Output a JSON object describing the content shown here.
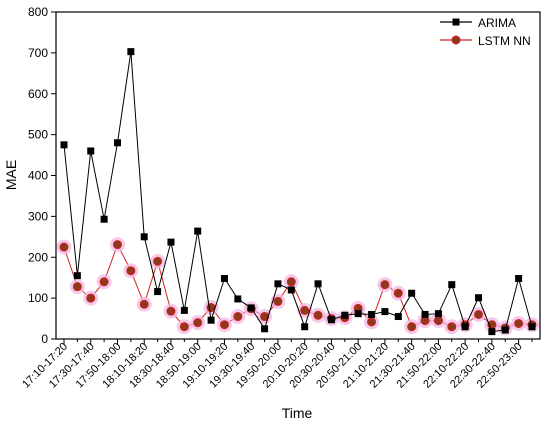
{
  "chart_data": {
    "type": "line",
    "title": "",
    "xlabel": "Time",
    "ylabel": "MAE",
    "ylim": [
      0,
      800
    ],
    "yticks": [
      0,
      100,
      200,
      300,
      400,
      500,
      600,
      700,
      800
    ],
    "grid": false,
    "legend_position": "top-right",
    "x": [
      "17:10",
      "17:20",
      "17:30",
      "17:40",
      "17:50",
      "18:00",
      "18:10",
      "18:20",
      "18:30",
      "18:40",
      "18:50",
      "19:00",
      "19:10",
      "19:20",
      "19:30",
      "19:40",
      "19:50",
      "20:00",
      "20:10",
      "20:20",
      "20:30",
      "20:40",
      "20:50",
      "21:00",
      "21:10",
      "21:20",
      "21:30",
      "21:40",
      "21:50",
      "22:00",
      "22:10",
      "22:20",
      "22:30",
      "22:40",
      "22:50",
      "23:00"
    ],
    "tick_labels": [
      "17:10-17:20",
      "17:30-17:40",
      "17:50-18:00",
      "18:10-18:20",
      "18:30-18:40",
      "18:50-19:00",
      "19:10-19:20",
      "19:30-19:40",
      "19:50-20:00",
      "20:10-20:20",
      "20:30-20:40",
      "20:50-21:00",
      "21:10-21:20",
      "21:30-21:40",
      "21:50-22:00",
      "22:10-22:20",
      "22:30-22:40",
      "22:50-23:00"
    ],
    "series": [
      {
        "name": "ARIMA",
        "color": "#000000",
        "marker": "square",
        "values": [
          475,
          155,
          460,
          293,
          480,
          703,
          250,
          116,
          237,
          70,
          264,
          46,
          148,
          98,
          76,
          25,
          135,
          120,
          30,
          135,
          47,
          58,
          62,
          60,
          67,
          55,
          112,
          60,
          62,
          133,
          30,
          101,
          18,
          22,
          148,
          30
        ]
      },
      {
        "name": "LSTM NN",
        "color": "#d42020",
        "marker": "circle",
        "values": [
          225,
          128,
          100,
          140,
          231,
          167,
          85,
          190,
          68,
          30,
          40,
          77,
          35,
          55,
          74,
          55,
          92,
          140,
          70,
          58,
          50,
          52,
          75,
          42,
          133,
          112,
          30,
          45,
          45,
          30,
          35,
          60,
          35,
          27,
          38,
          35
        ]
      }
    ]
  }
}
